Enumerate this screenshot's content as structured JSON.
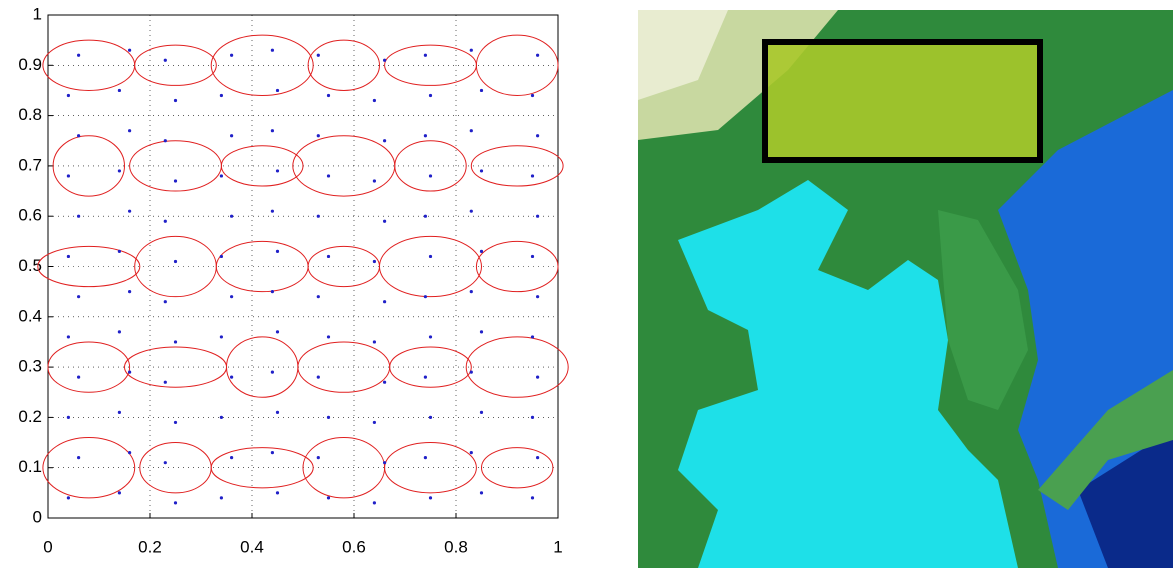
{
  "chart_data": {
    "type": "scatter",
    "xlim": [
      0,
      1
    ],
    "ylim": [
      0,
      1
    ],
    "xticks": [
      0,
      0.2,
      0.4,
      0.6,
      0.8,
      1
    ],
    "yticks": [
      0,
      0.1,
      0.2,
      0.3,
      0.4,
      0.5,
      0.6,
      0.7,
      0.8,
      0.9,
      1
    ],
    "grid": true,
    "x": [
      0.04,
      0.14,
      0.25,
      0.34,
      0.45,
      0.55,
      0.64,
      0.75,
      0.85,
      0.95,
      0.06,
      0.16,
      0.23,
      0.36,
      0.44,
      0.53,
      0.66,
      0.74,
      0.83,
      0.96,
      0.04,
      0.14,
      0.25,
      0.34,
      0.45,
      0.55,
      0.64,
      0.75,
      0.85,
      0.95,
      0.06,
      0.16,
      0.23,
      0.36,
      0.44,
      0.53,
      0.66,
      0.74,
      0.83,
      0.96,
      0.04,
      0.14,
      0.25,
      0.34,
      0.45,
      0.55,
      0.64,
      0.75,
      0.85,
      0.95,
      0.06,
      0.16,
      0.23,
      0.36,
      0.44,
      0.53,
      0.66,
      0.74,
      0.83,
      0.96,
      0.04,
      0.14,
      0.25,
      0.34,
      0.45,
      0.55,
      0.64,
      0.75,
      0.85,
      0.95,
      0.06,
      0.16,
      0.23,
      0.36,
      0.44,
      0.53,
      0.66,
      0.74,
      0.83,
      0.96,
      0.04,
      0.14,
      0.25,
      0.34,
      0.45,
      0.55,
      0.64,
      0.75,
      0.85,
      0.95,
      0.06,
      0.16,
      0.23,
      0.36,
      0.44,
      0.53,
      0.66,
      0.74,
      0.83,
      0.96,
      0.04,
      0.14,
      0.25,
      0.34,
      0.45,
      0.55,
      0.64,
      0.75,
      0.85,
      0.95,
      0.06,
      0.16,
      0.23,
      0.36,
      0.44,
      0.53,
      0.66,
      0.74,
      0.83,
      0.96
    ],
    "series": [
      {
        "color": "#2020c8",
        "values": [
          0.04,
          0.05,
          0.03,
          0.04,
          0.05,
          0.04,
          0.03,
          0.04,
          0.05,
          0.04,
          0.12,
          0.13,
          0.11,
          0.12,
          0.13,
          0.12,
          0.11,
          0.12,
          0.13,
          0.12,
          0.2,
          0.21,
          0.19,
          0.2,
          0.21,
          0.2,
          0.19,
          0.2,
          0.21,
          0.2,
          0.28,
          0.29,
          0.27,
          0.28,
          0.29,
          0.28,
          0.27,
          0.28,
          0.29,
          0.28,
          0.36,
          0.37,
          0.35,
          0.36,
          0.37,
          0.36,
          0.35,
          0.36,
          0.37,
          0.36,
          0.44,
          0.45,
          0.43,
          0.44,
          0.45,
          0.44,
          0.43,
          0.44,
          0.45,
          0.44,
          0.52,
          0.53,
          0.51,
          0.52,
          0.53,
          0.52,
          0.51,
          0.52,
          0.53,
          0.52,
          0.6,
          0.61,
          0.59,
          0.6,
          0.61,
          0.6,
          0.59,
          0.6,
          0.61,
          0.6,
          0.68,
          0.69,
          0.67,
          0.68,
          0.69,
          0.68,
          0.67,
          0.68,
          0.69,
          0.68,
          0.76,
          0.77,
          0.75,
          0.76,
          0.77,
          0.76,
          0.75,
          0.76,
          0.77,
          0.76,
          0.84,
          0.85,
          0.83,
          0.84,
          0.85,
          0.84,
          0.83,
          0.84,
          0.85,
          0.84,
          0.92,
          0.93,
          0.91,
          0.92,
          0.93,
          0.92,
          0.91,
          0.92,
          0.93,
          0.92
        ]
      }
    ],
    "ellipses": {
      "color": "#e02020",
      "x": [
        0.08,
        0.25,
        0.42,
        0.58,
        0.75,
        0.92,
        0.08,
        0.25,
        0.42,
        0.58,
        0.75,
        0.92,
        0.08,
        0.25,
        0.42,
        0.58,
        0.75,
        0.92,
        0.08,
        0.25,
        0.42,
        0.58,
        0.75,
        0.92,
        0.08,
        0.25,
        0.42,
        0.58,
        0.75,
        0.92
      ],
      "y": [
        0.1,
        0.1,
        0.1,
        0.1,
        0.1,
        0.1,
        0.3,
        0.3,
        0.3,
        0.3,
        0.3,
        0.3,
        0.5,
        0.5,
        0.5,
        0.5,
        0.5,
        0.5,
        0.7,
        0.7,
        0.7,
        0.7,
        0.7,
        0.7,
        0.9,
        0.9,
        0.9,
        0.9,
        0.9,
        0.9
      ],
      "rx": [
        0.09,
        0.07,
        0.1,
        0.08,
        0.09,
        0.07,
        0.08,
        0.1,
        0.07,
        0.09,
        0.08,
        0.1,
        0.1,
        0.08,
        0.09,
        0.07,
        0.1,
        0.08,
        0.07,
        0.09,
        0.08,
        0.1,
        0.07,
        0.09,
        0.09,
        0.08,
        0.1,
        0.07,
        0.09,
        0.08
      ],
      "ry": [
        0.06,
        0.05,
        0.04,
        0.06,
        0.05,
        0.04,
        0.05,
        0.04,
        0.06,
        0.05,
        0.04,
        0.06,
        0.04,
        0.06,
        0.05,
        0.04,
        0.06,
        0.05,
        0.06,
        0.05,
        0.04,
        0.06,
        0.05,
        0.04,
        0.05,
        0.04,
        0.06,
        0.05,
        0.04,
        0.06
      ]
    }
  }
}
